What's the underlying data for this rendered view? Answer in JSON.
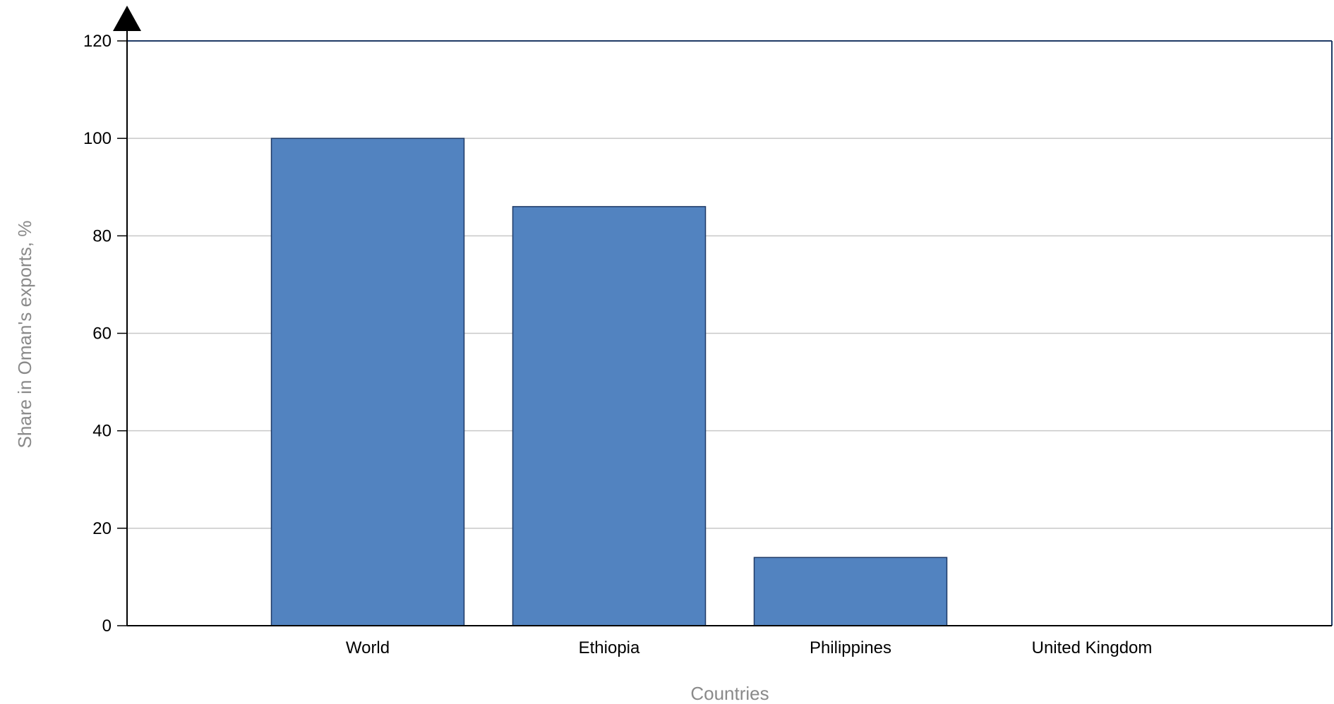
{
  "chart_data": {
    "type": "bar",
    "categories": [
      "World",
      "Ethiopia",
      "Philippines",
      "United Kingdom"
    ],
    "values": [
      100,
      86,
      14,
      0
    ],
    "xlabel": "Countries",
    "ylabel": "Share in Oman's exports, %",
    "ylim": [
      0,
      120
    ],
    "yticks": [
      0,
      20,
      40,
      60,
      80,
      100,
      120
    ],
    "grid": true,
    "bar_color": "#5283c0",
    "bar_border_color": "#1f3a66",
    "grid_color": "#c8c8c8",
    "axis_color": "#000000",
    "frame_color": "#1f3a66"
  }
}
